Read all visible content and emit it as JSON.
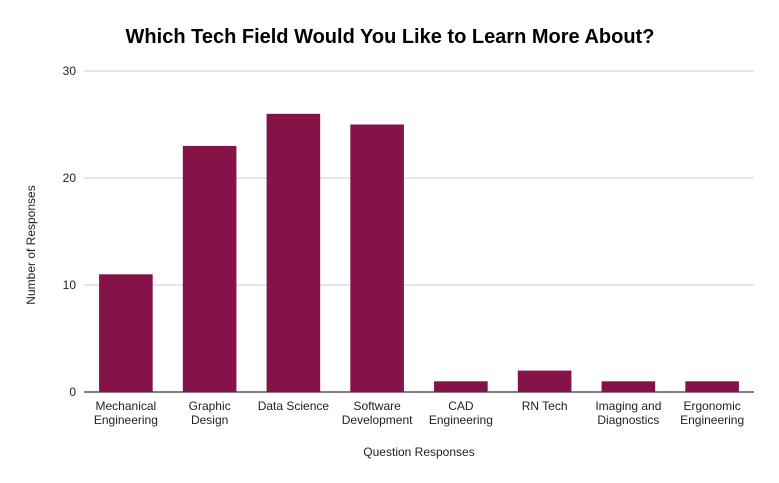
{
  "chart_data": {
    "type": "bar",
    "title": "Which Tech Field Would You Like to Learn More About?",
    "xlabel": "Question Responses",
    "ylabel": "Number of Responses",
    "ylim": [
      0,
      30
    ],
    "yticks": [
      0,
      10,
      20,
      30
    ],
    "grid": true,
    "legend": "none",
    "bar_color": "#86124a",
    "grid_color": "#cccccc",
    "axis_color": "#333333",
    "categories": [
      [
        "Mechanical",
        "Engineering"
      ],
      [
        "Graphic",
        "Design"
      ],
      [
        "Data Science"
      ],
      [
        "Software",
        "Development"
      ],
      [
        "CAD",
        "Engineering"
      ],
      [
        "RN Tech"
      ],
      [
        "Imaging and",
        "Diagnostics"
      ],
      [
        "Ergonomic",
        "Engineering"
      ]
    ],
    "values": [
      11,
      23,
      26,
      25,
      1,
      2,
      1,
      1
    ]
  }
}
